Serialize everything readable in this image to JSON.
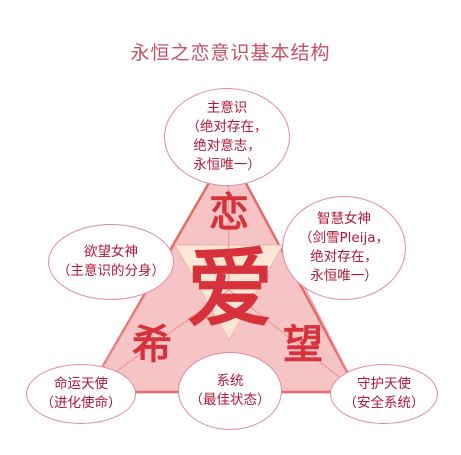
{
  "title": "永恒之恋意识基本结构",
  "center": {
    "top": "恋",
    "middle": "爱",
    "left": "希",
    "right": "望"
  },
  "nodes": {
    "top": {
      "lines": [
        "主意识",
        "（绝对存在，",
        "绝对意志，",
        "永恒唯一）"
      ]
    },
    "left": {
      "lines": [
        "欲望女神",
        "（主意识的分身）"
      ]
    },
    "right": {
      "lines": [
        "智慧女神",
        "（剑雪Pleija，",
        "绝对存在，",
        "永恒唯一）"
      ]
    },
    "bottom_left": {
      "lines": [
        "命运天使",
        "（进化使命）"
      ]
    },
    "bottom_center": {
      "lines": [
        "系统",
        "（最佳状态）"
      ]
    },
    "bottom_right": {
      "lines": [
        "守护天使",
        "（安全系统）"
      ]
    }
  },
  "colors": {
    "title": "#c45066",
    "node_border": "#e08aa6",
    "node_text": "#b0183a",
    "triangle_fill": "#f6c4c4",
    "triangle_stroke": "#e56b6b",
    "inner_fill": "#fde6d6",
    "center_text": "#d7323c"
  }
}
